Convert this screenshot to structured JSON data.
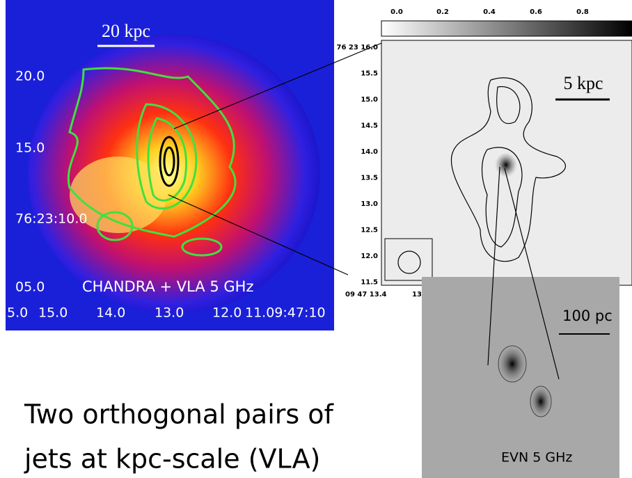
{
  "left_panel": {
    "scale_label": "20 kpc",
    "caption": "CHANDRA + VLA 5 GHz",
    "y_labels": [
      "20.0",
      "15.0",
      "76:23:10.0",
      "05.0"
    ],
    "x_labels": [
      "5.0",
      "15.0",
      "14.0",
      "13.0",
      "12.0",
      "11.09:47:10"
    ]
  },
  "right_panel": {
    "scale_label": "5 kpc",
    "colorbar_labels": [
      "0.0",
      "0.2",
      "0.4",
      "0.6",
      "0.8"
    ],
    "y_labels": [
      "76 23 16.0",
      "15.5",
      "15.0",
      "14.5",
      "14.0",
      "13.5",
      "13.0",
      "12.5",
      "12.0",
      "11.5"
    ],
    "x_labels": [
      "09 47 13.4",
      "13."
    ]
  },
  "inset": {
    "scale_label": "100 pc",
    "caption": "EVN 5 GHz"
  },
  "body_text": [
    "Two orthogonal pairs of",
    "jets at kpc-scale (VLA)"
  ]
}
